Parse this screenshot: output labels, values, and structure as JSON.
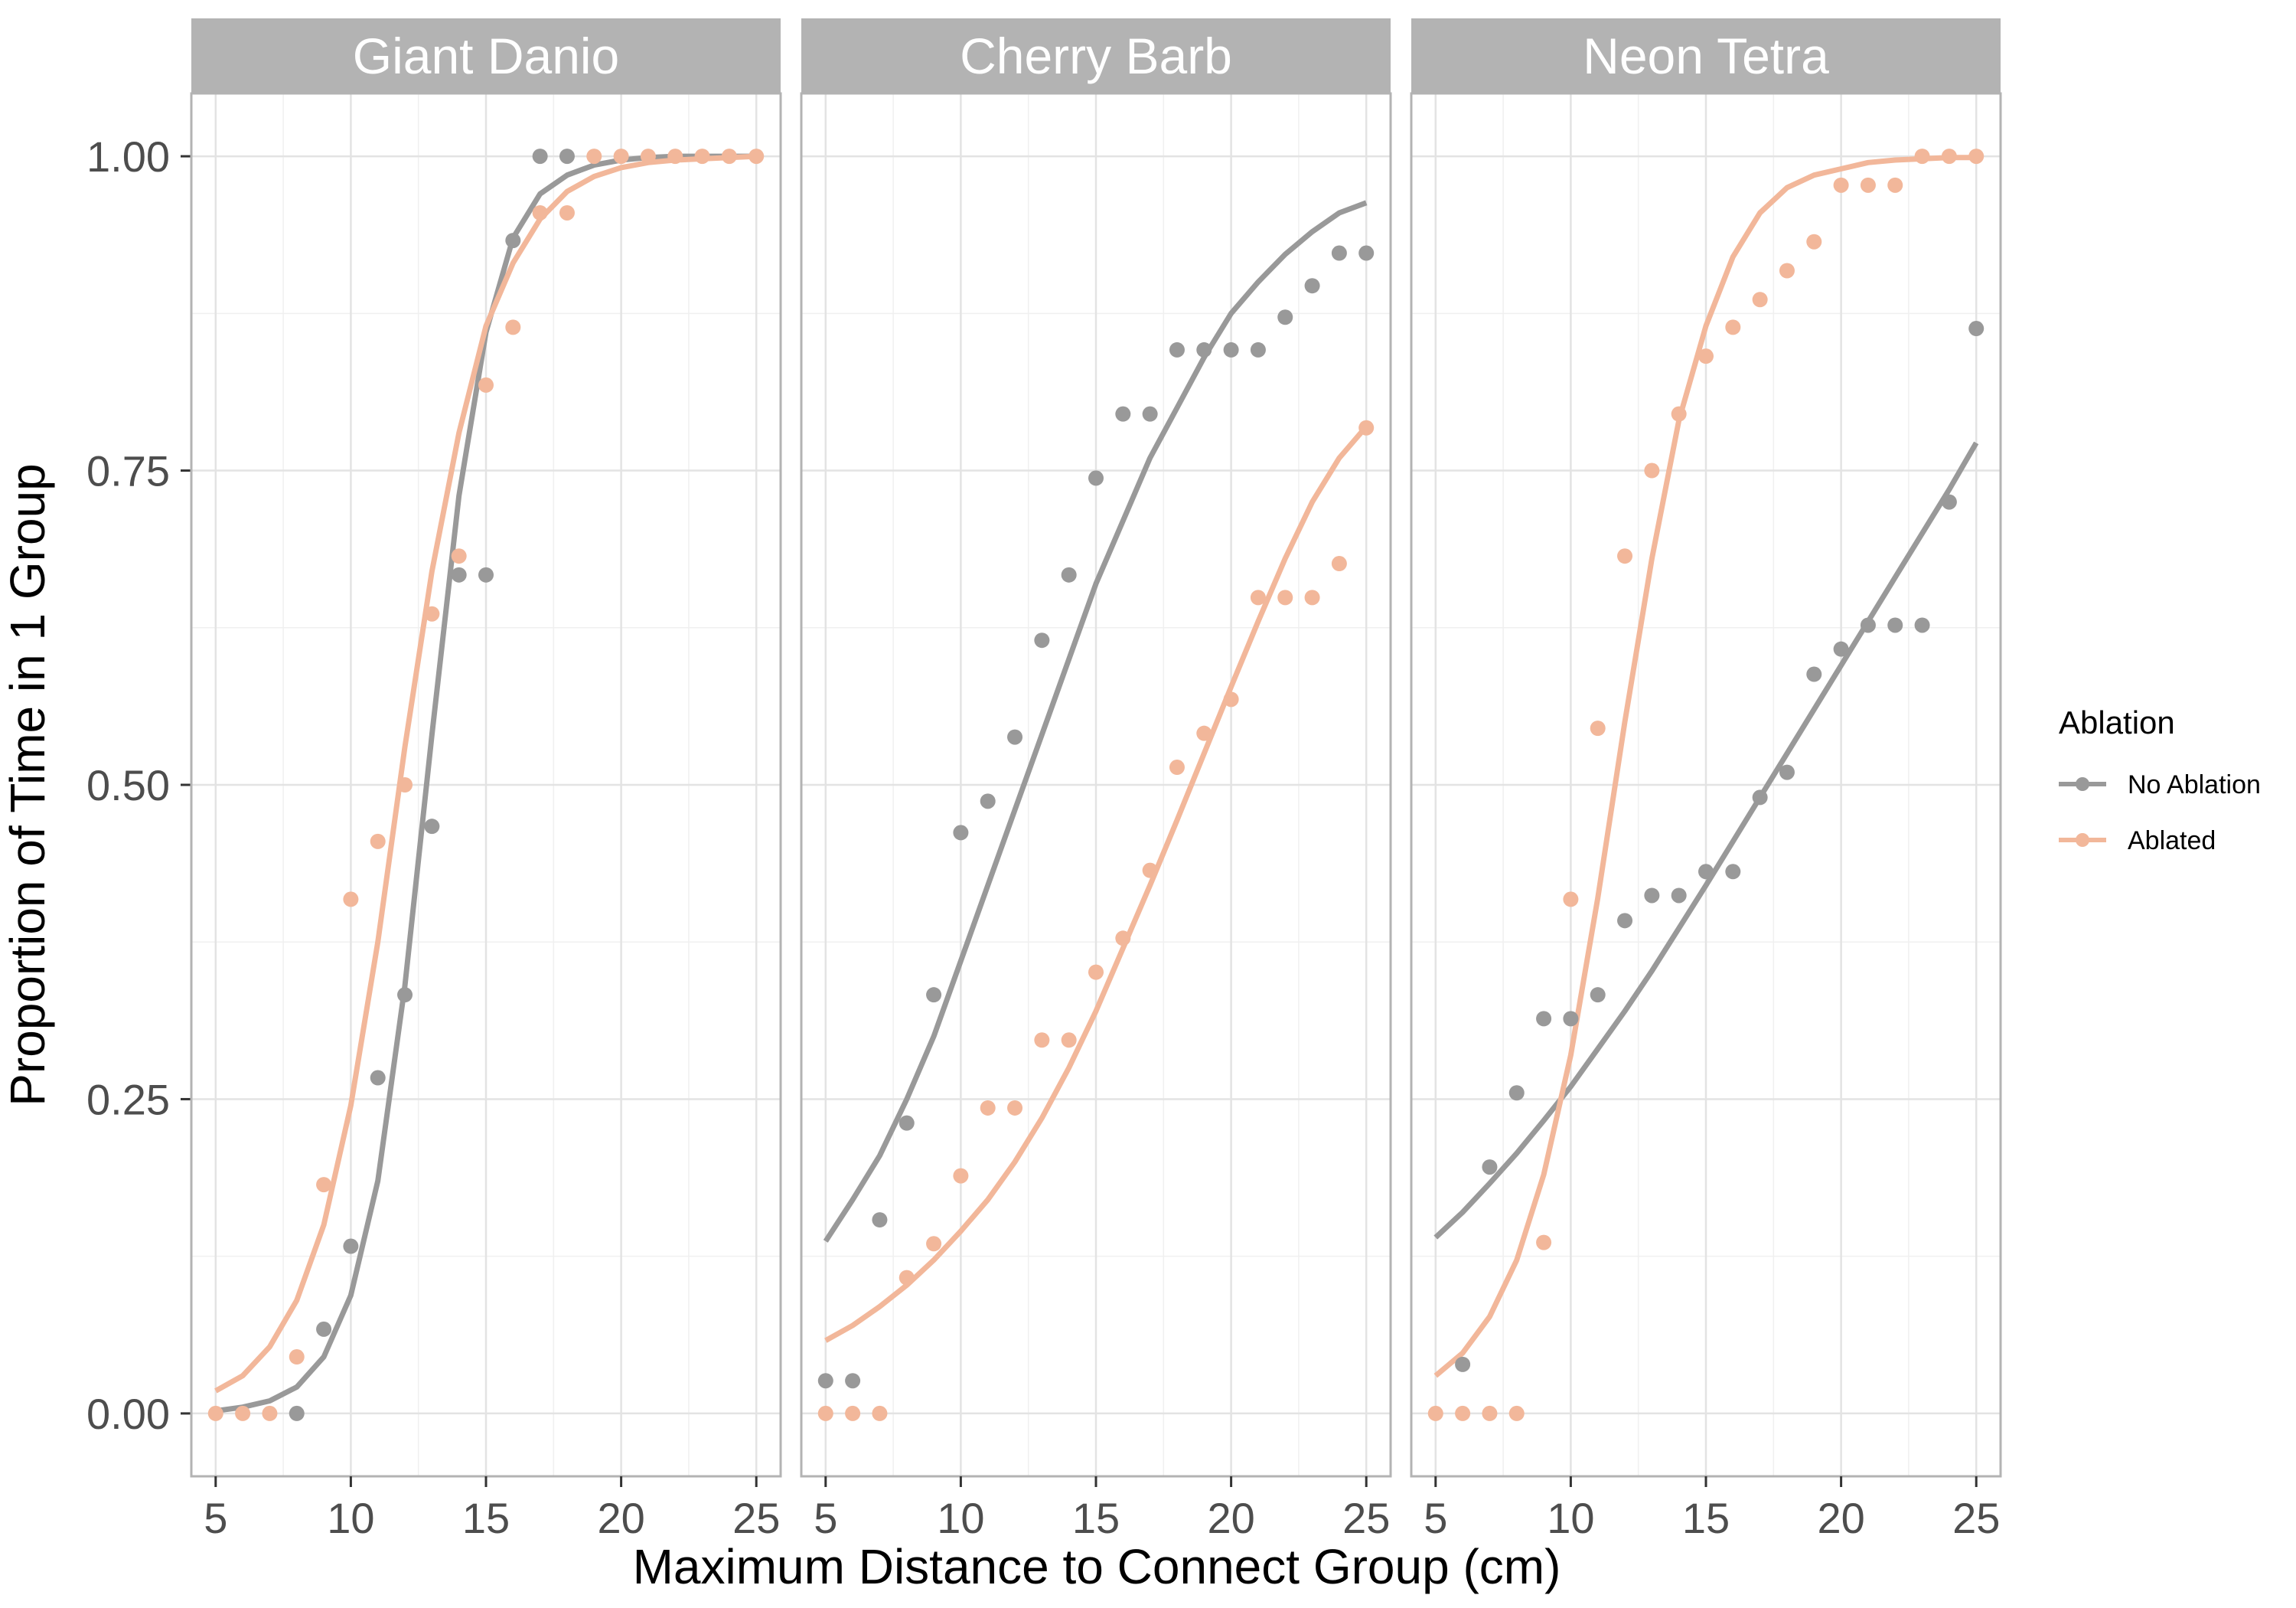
{
  "chart_data": {
    "type": "scatter",
    "facet_by": "species",
    "panels": [
      {
        "title": "Giant Danio",
        "series": [
          {
            "name": "No Ablation",
            "color": "#999999",
            "points": {
              "x": [
                8,
                9,
                10,
                11,
                12,
                13,
                14,
                15,
                16,
                17,
                18
              ],
              "y": [
                0.0,
                0.067,
                0.133,
                0.267,
                0.333,
                0.467,
                0.667,
                0.667,
                0.933,
                1.0,
                1.0
              ]
            },
            "fit": {
              "x": [
                5,
                6,
                7,
                8,
                9,
                10,
                11,
                12,
                13,
                14,
                15,
                16,
                17,
                18,
                19,
                20,
                21,
                22,
                23,
                24,
                25
              ],
              "y": [
                0.002,
                0.005,
                0.01,
                0.021,
                0.045,
                0.094,
                0.185,
                0.34,
                0.54,
                0.73,
                0.86,
                0.935,
                0.97,
                0.985,
                0.993,
                0.997,
                0.999,
                1.0,
                1.0,
                1.0,
                1.0
              ]
            }
          },
          {
            "name": "Ablated",
            "color": "#f2b79a",
            "points": {
              "x": [
                5,
                6,
                7,
                8,
                9,
                10,
                11,
                12,
                13,
                14,
                15,
                16,
                17,
                18,
                19,
                20,
                21,
                22,
                23,
                24,
                25
              ],
              "y": [
                0.0,
                0.0,
                0.0,
                0.045,
                0.182,
                0.409,
                0.455,
                0.5,
                0.636,
                0.682,
                0.818,
                0.864,
                0.955,
                0.955,
                1.0,
                1.0,
                1.0,
                1.0,
                1.0,
                1.0,
                1.0
              ]
            },
            "fit": {
              "x": [
                5,
                6,
                7,
                8,
                9,
                10,
                11,
                12,
                13,
                14,
                15,
                16,
                17,
                18,
                19,
                20,
                21,
                22,
                23,
                24,
                25
              ],
              "y": [
                0.018,
                0.03,
                0.053,
                0.09,
                0.15,
                0.245,
                0.375,
                0.53,
                0.67,
                0.78,
                0.865,
                0.915,
                0.95,
                0.972,
                0.984,
                0.991,
                0.995,
                0.997,
                0.998,
                0.999,
                1.0
              ]
            }
          }
        ]
      },
      {
        "title": "Cherry Barb",
        "series": [
          {
            "name": "No Ablation",
            "color": "#999999",
            "points": {
              "x": [
                5,
                6,
                7,
                8,
                9,
                10,
                11,
                12,
                13,
                14,
                15,
                16,
                17,
                18,
                19,
                20,
                21,
                22,
                23,
                24,
                25
              ],
              "y": [
                0.026,
                0.026,
                0.154,
                0.231,
                0.333,
                0.462,
                0.487,
                0.538,
                0.615,
                0.667,
                0.744,
                0.795,
                0.795,
                0.846,
                0.846,
                0.846,
                0.846,
                0.872,
                0.897,
                0.923,
                0.923
              ]
            },
            "fit": {
              "x": [
                5,
                6,
                7,
                8,
                9,
                10,
                11,
                12,
                13,
                14,
                15,
                16,
                17,
                18,
                19,
                20,
                21,
                22,
                23,
                24,
                25
              ],
              "y": [
                0.137,
                0.17,
                0.205,
                0.25,
                0.3,
                0.36,
                0.42,
                0.48,
                0.54,
                0.6,
                0.66,
                0.71,
                0.76,
                0.8,
                0.84,
                0.875,
                0.9,
                0.922,
                0.94,
                0.955,
                0.963
              ]
            }
          },
          {
            "name": "Ablated",
            "color": "#f2b79a",
            "points": {
              "x": [
                5,
                6,
                7,
                8,
                9,
                10,
                11,
                12,
                13,
                14,
                15,
                16,
                17,
                18,
                19,
                20,
                21,
                22,
                23,
                24,
                25
              ],
              "y": [
                0.0,
                0.0,
                0.0,
                0.108,
                0.135,
                0.189,
                0.243,
                0.243,
                0.297,
                0.297,
                0.351,
                0.378,
                0.432,
                0.514,
                0.541,
                0.568,
                0.649,
                0.649,
                0.649,
                0.676,
                0.784
              ]
            },
            "fit": {
              "x": [
                5,
                6,
                7,
                8,
                9,
                10,
                11,
                12,
                13,
                14,
                15,
                16,
                17,
                18,
                19,
                20,
                21,
                22,
                23,
                24,
                25
              ],
              "y": [
                0.058,
                0.07,
                0.085,
                0.102,
                0.122,
                0.145,
                0.17,
                0.2,
                0.235,
                0.275,
                0.32,
                0.37,
                0.42,
                0.472,
                0.525,
                0.578,
                0.63,
                0.68,
                0.725,
                0.76,
                0.785
              ]
            }
          }
        ]
      },
      {
        "title": "Neon Tetra",
        "series": [
          {
            "name": "No Ablation",
            "color": "#999999",
            "points": {
              "x": [
                6,
                7,
                8,
                9,
                10,
                11,
                12,
                13,
                14,
                15,
                16,
                17,
                18,
                19,
                20,
                21,
                22,
                23,
                24,
                25
              ],
              "y": [
                0.039,
                0.196,
                0.255,
                0.314,
                0.314,
                0.333,
                0.392,
                0.412,
                0.412,
                0.431,
                0.431,
                0.49,
                0.51,
                0.588,
                0.608,
                0.627,
                0.627,
                0.627,
                0.725,
                0.863
              ]
            },
            "fit": {
              "x": [
                5,
                6,
                7,
                8,
                9,
                10,
                11,
                12,
                13,
                14,
                15,
                16,
                17,
                18,
                19,
                20,
                21,
                22,
                23,
                24,
                25
              ],
              "y": [
                0.14,
                0.16,
                0.183,
                0.207,
                0.233,
                0.26,
                0.29,
                0.32,
                0.352,
                0.386,
                0.42,
                0.455,
                0.49,
                0.525,
                0.56,
                0.595,
                0.63,
                0.665,
                0.7,
                0.735,
                0.772
              ]
            }
          },
          {
            "name": "Ablated",
            "color": "#f2b79a",
            "points": {
              "x": [
                5,
                6,
                7,
                8,
                9,
                10,
                11,
                12,
                13,
                14,
                15,
                16,
                17,
                18,
                19,
                20,
                21,
                22,
                23,
                24,
                25
              ],
              "y": [
                0.0,
                0.0,
                0.0,
                0.0,
                0.136,
                0.409,
                0.545,
                0.682,
                0.75,
                0.795,
                0.841,
                0.864,
                0.886,
                0.909,
                0.932,
                0.977,
                0.977,
                0.977,
                1.0,
                1.0,
                1.0
              ]
            },
            "fit": {
              "x": [
                5,
                6,
                7,
                8,
                9,
                10,
                11,
                12,
                13,
                14,
                15,
                16,
                17,
                18,
                19,
                20,
                21,
                22,
                23,
                24,
                25
              ],
              "y": [
                0.03,
                0.048,
                0.077,
                0.122,
                0.19,
                0.285,
                0.41,
                0.55,
                0.68,
                0.79,
                0.865,
                0.92,
                0.955,
                0.975,
                0.985,
                0.99,
                0.995,
                0.997,
                0.998,
                0.999,
                0.999
              ]
            }
          }
        ]
      }
    ],
    "xlabel": "Maximum Distance to Connect Group (cm)",
    "ylabel": "Proportion of Time in 1 Group",
    "xlim": [
      4.1,
      25.9
    ],
    "ylim": [
      -0.05,
      1.05
    ],
    "xticks": [
      5,
      10,
      15,
      20,
      25
    ],
    "xtick_labels": [
      "5",
      "10",
      "15",
      "20",
      "25"
    ],
    "yticks": [
      0,
      0.25,
      0.5,
      0.75,
      1
    ],
    "ytick_labels": [
      "0.00",
      "0.25",
      "0.50",
      "0.75",
      "1.00"
    ],
    "legend": {
      "title": "Ablation",
      "position": "right",
      "entries": [
        {
          "label": "No Ablation",
          "color": "#999999"
        },
        {
          "label": "Ablated",
          "color": "#f2b79a"
        }
      ]
    },
    "grid": true
  }
}
